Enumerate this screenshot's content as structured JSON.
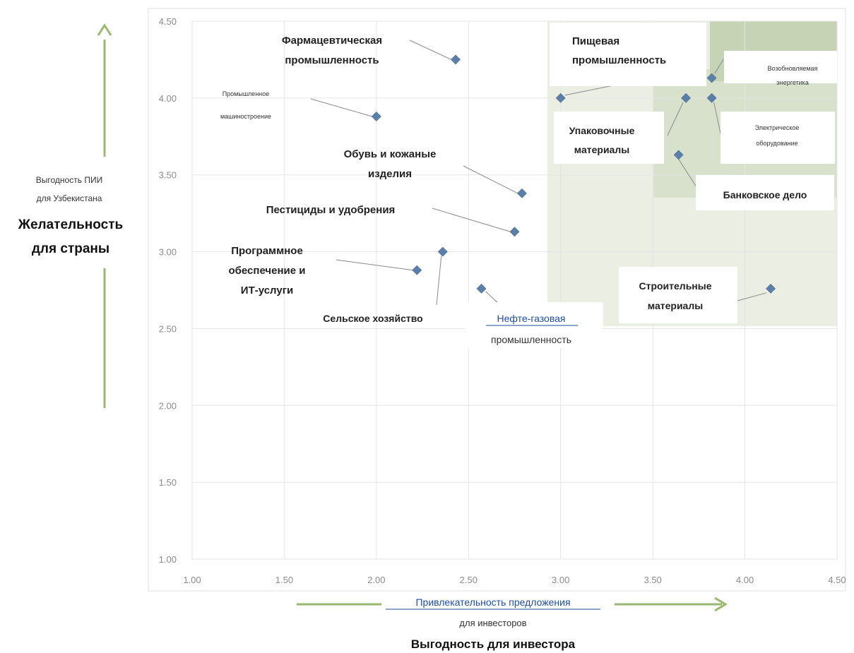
{
  "chart_data": {
    "type": "scatter",
    "xlim": [
      1.0,
      4.5
    ],
    "ylim": [
      1.0,
      4.5
    ],
    "x_ticks": [
      "1.00",
      "1.50",
      "2.00",
      "2.50",
      "3.00",
      "3.50",
      "4.00",
      "4.50"
    ],
    "y_ticks": [
      "1.00",
      "1.50",
      "2.00",
      "2.50",
      "3.00",
      "3.50",
      "4.00",
      "4.50"
    ],
    "grid": true,
    "colors": {
      "marker": "#5b7fa8",
      "arrow": "#9bb870",
      "zone_light": "#eaeee3",
      "zone_mid": "#d8e1cc",
      "zone_dark": "#c6d3b5",
      "gridline": "#e4e4e4",
      "leader": "#8a8a8a"
    },
    "points": [
      {
        "name": "Фармацевтическая промышленность",
        "x": 2.43,
        "y": 4.25
      },
      {
        "name": "Промышленное машиностроение",
        "x": 2.0,
        "y": 3.88
      },
      {
        "name": "Обувь и кожаные изделия",
        "x": 2.79,
        "y": 3.38
      },
      {
        "name": "Пестициды и удобрения",
        "x": 2.75,
        "y": 3.13
      },
      {
        "name": "Программное обеспечение и ИТ-услуги",
        "x": 2.22,
        "y": 2.88
      },
      {
        "name": "Сельское хозяйство",
        "x": 2.36,
        "y": 3.0
      },
      {
        "name": "Нефте-газовая промышленность",
        "x": 2.57,
        "y": 2.76
      },
      {
        "name": "Пищевая промышленность",
        "x": 3.0,
        "y": 4.0
      },
      {
        "name": "Упаковочные материалы",
        "x": 3.68,
        "y": 4.0
      },
      {
        "name": "Возобновляемая энергетика",
        "x": 3.82,
        "y": 4.13
      },
      {
        "name": "Электрическое оборудование",
        "x": 3.82,
        "y": 4.0
      },
      {
        "name": "Банковское дело",
        "x": 3.64,
        "y": 3.63
      },
      {
        "name": "Строительные материалы",
        "x": 4.14,
        "y": 2.76
      }
    ],
    "labels": {
      "pharma": [
        "Фармацевтическая",
        "промышленность"
      ],
      "machinery": [
        "Промышленное",
        "машиностроение"
      ],
      "footwear": [
        "Обувь и кожаные",
        "изделия"
      ],
      "pesticides": "Пестициды и удобрения",
      "software": [
        "Программное",
        "обеспечение и",
        "ИТ-услуги"
      ],
      "agriculture": "Сельское хозяйство",
      "oilgas": [
        "Нефте-газовая",
        "промышленность"
      ],
      "food": [
        "Пищевая",
        "промышленность"
      ],
      "renewable": [
        "Возобновляемая",
        "энергетика"
      ],
      "packaging": [
        "Упаковочные",
        "материалы"
      ],
      "electrical": [
        "Электрическое",
        "оборудование"
      ],
      "banking": "Банковское дело",
      "construction": [
        "Строительные",
        "материалы"
      ]
    },
    "y_axis_text": {
      "line1": "Выгодность ПИИ",
      "line2": "для Узбекистана",
      "bold1": "Желательность",
      "bold2": "для страны"
    },
    "x_axis_text": {
      "line1": "Привлекательность предложения",
      "line2": "для инвесторов",
      "bold": "Выгодность для инвестора"
    }
  }
}
